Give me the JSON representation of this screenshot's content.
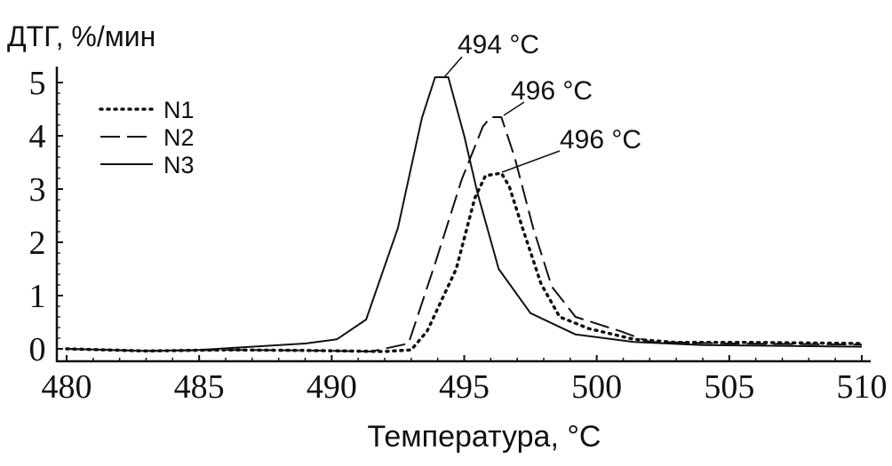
{
  "chart_data": {
    "type": "line",
    "ylabel": "ДТГ, %/мин",
    "xlabel": "Температура, °C",
    "xlim": [
      480,
      510
    ],
    "ylim": [
      0,
      5
    ],
    "xticks": [
      "480",
      "485",
      "490",
      "495",
      "500",
      "505",
      "510"
    ],
    "yticks": [
      "0",
      "1",
      "2",
      "3",
      "4",
      "5"
    ],
    "grid": false,
    "legend_position": "top-left",
    "series": [
      {
        "name": "N1",
        "style": "dotted",
        "x": [
          480,
          483,
          486,
          489,
          492,
          493,
          493.6,
          494.7,
          495.4,
          495.8,
          496.4,
          496.7,
          497.2,
          497.9,
          498.6,
          499.7,
          501.4,
          503,
          506,
          510
        ],
        "y": [
          0,
          -0.04,
          -0.02,
          -0.03,
          -0.05,
          -0.02,
          0.33,
          1.5,
          2.83,
          3.25,
          3.3,
          3.05,
          2.27,
          1.22,
          0.6,
          0.38,
          0.18,
          0.12,
          0.12,
          0.1
        ]
      },
      {
        "name": "N2",
        "style": "dashed",
        "x": [
          480,
          483,
          486,
          489,
          491.5,
          492.9,
          493.9,
          494.9,
          495.7,
          496.0,
          496.4,
          496.9,
          497.6,
          498.3,
          499.2,
          500.9,
          502,
          505,
          510
        ],
        "y": [
          0,
          -0.04,
          -0.02,
          -0.03,
          -0.05,
          0.1,
          1.6,
          3.17,
          4.17,
          4.35,
          4.35,
          3.6,
          2.27,
          1.17,
          0.6,
          0.33,
          0.13,
          0.1,
          0.08
        ]
      },
      {
        "name": "N3",
        "style": "solid",
        "x": [
          480,
          483,
          485,
          487,
          489,
          490.2,
          491.3,
          492.5,
          493.4,
          493.9,
          494.4,
          495.0,
          495.5,
          496.3,
          497.5,
          499.2,
          501.4,
          504,
          510
        ],
        "y": [
          0,
          -0.04,
          -0.02,
          0.04,
          0.1,
          0.18,
          0.55,
          2.27,
          4.33,
          5.1,
          5.1,
          4.0,
          2.93,
          1.5,
          0.67,
          0.27,
          0.13,
          0.07,
          0.04
        ]
      }
    ],
    "annotations": [
      {
        "text": "494 °C",
        "x": 494.2,
        "y": 5.1,
        "series": "N3"
      },
      {
        "text": "496 °C",
        "x": 496.4,
        "y": 4.35,
        "series": "N2"
      },
      {
        "text": "496 °C",
        "x": 496.3,
        "y": 3.3,
        "series": "N1"
      }
    ]
  }
}
